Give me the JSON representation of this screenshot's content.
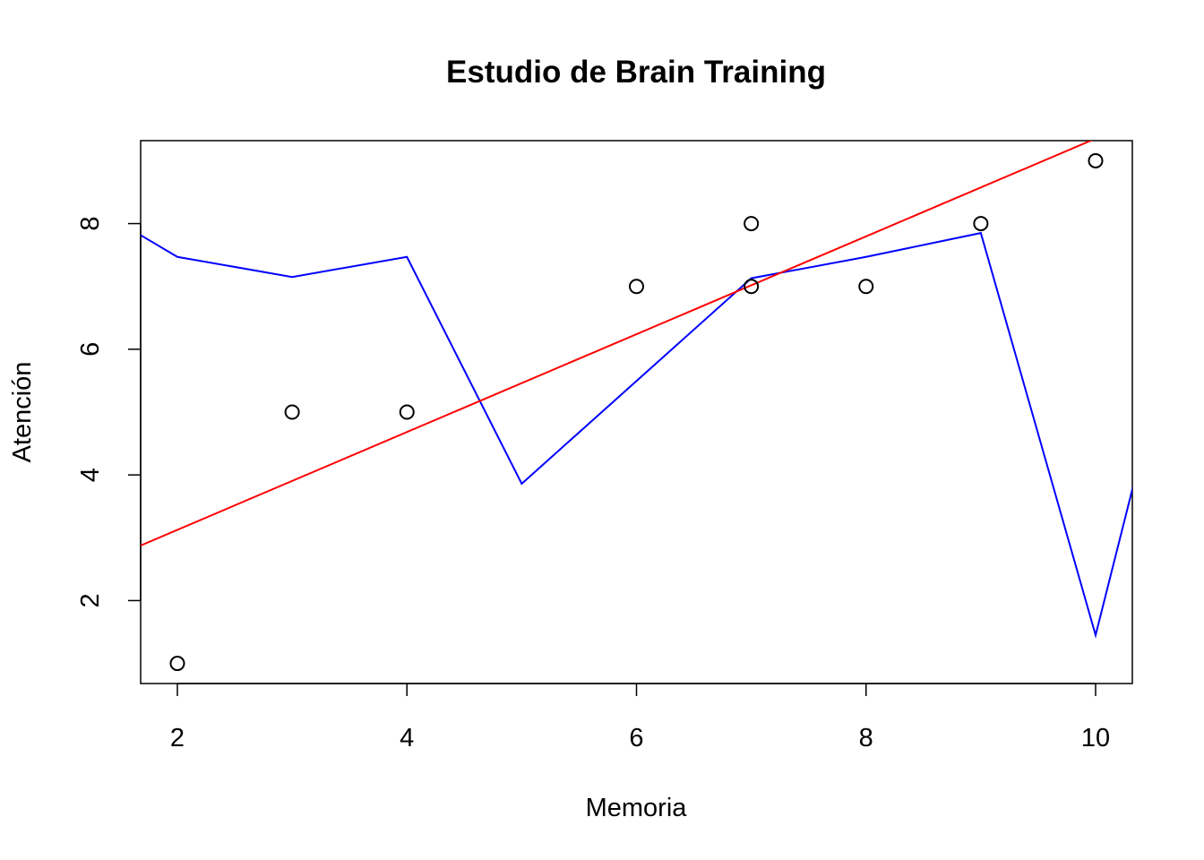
{
  "chart_data": {
    "type": "scatter",
    "title": "Estudio de Brain Training",
    "xlabel": "Memoria",
    "ylabel": "Atención",
    "xlim": [
      1.68,
      10.32
    ],
    "ylim": [
      0.68,
      9.32
    ],
    "x_ticks": [
      {
        "value": 2,
        "label": "2"
      },
      {
        "value": 4,
        "label": "4"
      },
      {
        "value": 6,
        "label": "6"
      },
      {
        "value": 8,
        "label": "8"
      },
      {
        "value": 10,
        "label": "10"
      }
    ],
    "y_ticks": [
      {
        "value": 2,
        "label": "2"
      },
      {
        "value": 4,
        "label": "4"
      },
      {
        "value": 6,
        "label": "6"
      },
      {
        "value": 8,
        "label": "8"
      }
    ],
    "points": [
      {
        "x": 2,
        "y": 1
      },
      {
        "x": 3,
        "y": 5
      },
      {
        "x": 4,
        "y": 5
      },
      {
        "x": 6,
        "y": 7
      },
      {
        "x": 7,
        "y": 8
      },
      {
        "x": 7,
        "y": 7
      },
      {
        "x": 8,
        "y": 7
      },
      {
        "x": 9,
        "y": 8
      },
      {
        "x": 10,
        "y": 9
      }
    ],
    "series": [
      {
        "type": "line",
        "color": "#0000ff",
        "x": [
          1,
          2,
          3,
          4,
          5,
          7,
          8,
          9,
          10,
          11
        ],
        "y": [
          8.55,
          7.47,
          7.15,
          7.47,
          3.86,
          7.13,
          7.47,
          7.85,
          1.45,
          8.7
        ]
      },
      {
        "type": "abline",
        "color": "#ff0000",
        "intercept": 1.569,
        "slope": 0.7784
      }
    ],
    "grid": false,
    "legend": "none"
  }
}
